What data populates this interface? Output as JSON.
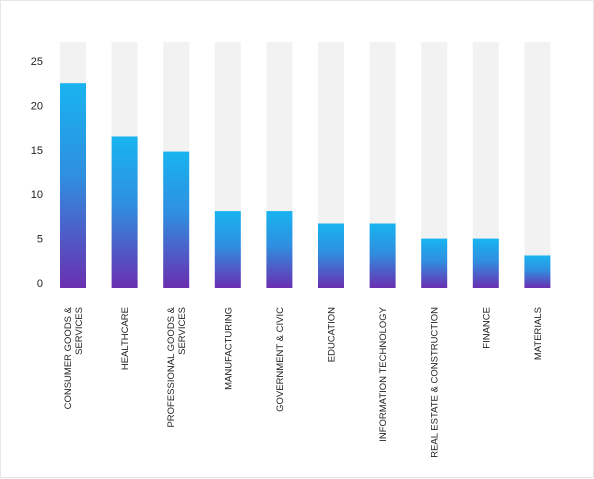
{
  "chart_data": {
    "type": "bar",
    "categories": [
      [
        "CONSUMER GOODS &",
        "SERVICES"
      ],
      [
        "HEALTHCARE"
      ],
      [
        "PROFESSIONAL GOODS &",
        "SERVICES"
      ],
      [
        "MANUFACTURING"
      ],
      [
        "GOVERNMENT & CIVIC"
      ],
      [
        "EDUCATION"
      ],
      [
        "INFORMATION TECHNOLOGY"
      ],
      [
        "REAL ESTATE & CONSTRUCTION"
      ],
      [
        "FINANCE"
      ],
      [
        "MATERIALS"
      ]
    ],
    "values": [
      22.5,
      16.5,
      14.8,
      8.1,
      8.1,
      6.7,
      6.7,
      5.0,
      5.0,
      3.1
    ],
    "ylim": [
      0,
      27
    ],
    "yticks": [
      0,
      5,
      10,
      15,
      20,
      25
    ],
    "grid": false,
    "legend": "none",
    "colors": {
      "bar_top": "#18b4f0",
      "bar_bottom": "#6a2fb0",
      "track": "#f2f2f2"
    }
  }
}
